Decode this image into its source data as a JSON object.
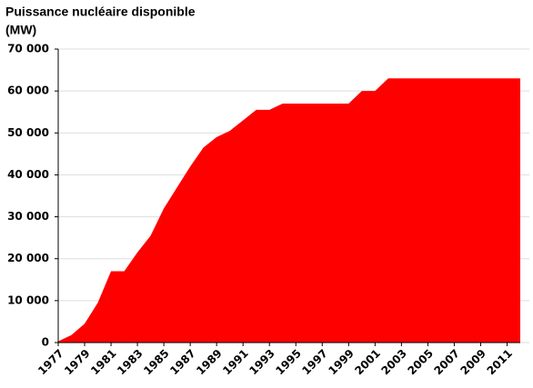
{
  "chart_data": {
    "type": "area",
    "title": "Puissance nucléaire disponible",
    "unit": "(MW)",
    "color": "#ff0000",
    "x": [
      1977,
      1978,
      1979,
      1980,
      1981,
      1982,
      1983,
      1984,
      1985,
      1986,
      1987,
      1988,
      1989,
      1990,
      1991,
      1992,
      1993,
      1994,
      1995,
      1996,
      1997,
      1998,
      1999,
      2000,
      2001,
      2002,
      2003,
      2004,
      2005,
      2006,
      2007,
      2008,
      2009,
      2010,
      2011,
      2012
    ],
    "values": [
      300,
      1800,
      4500,
      9500,
      17000,
      17000,
      21500,
      25500,
      32000,
      37000,
      42000,
      46500,
      49000,
      50500,
      53000,
      55500,
      55500,
      57000,
      57000,
      57000,
      57000,
      57000,
      57000,
      60000,
      60000,
      63000,
      63000,
      63000,
      63000,
      63000,
      63000,
      63000,
      63000,
      63000,
      63000,
      63000
    ],
    "xlim": [
      1977,
      2012
    ],
    "xticks": [
      1977,
      1979,
      1981,
      1983,
      1985,
      1987,
      1989,
      1991,
      1993,
      1995,
      1997,
      1999,
      2001,
      2003,
      2005,
      2007,
      2009,
      2011
    ],
    "ylim": [
      0,
      70000
    ],
    "yticks": [
      {
        "value": 0,
        "label": "0"
      },
      {
        "value": 10000,
        "label": "10 000"
      },
      {
        "value": 20000,
        "label": "20 000"
      },
      {
        "value": 30000,
        "label": "30 000"
      },
      {
        "value": 40000,
        "label": "40 000"
      },
      {
        "value": 50000,
        "label": "50 000"
      },
      {
        "value": 60000,
        "label": "60 000"
      },
      {
        "value": 70000,
        "label": "70 000"
      }
    ],
    "grid": true
  }
}
